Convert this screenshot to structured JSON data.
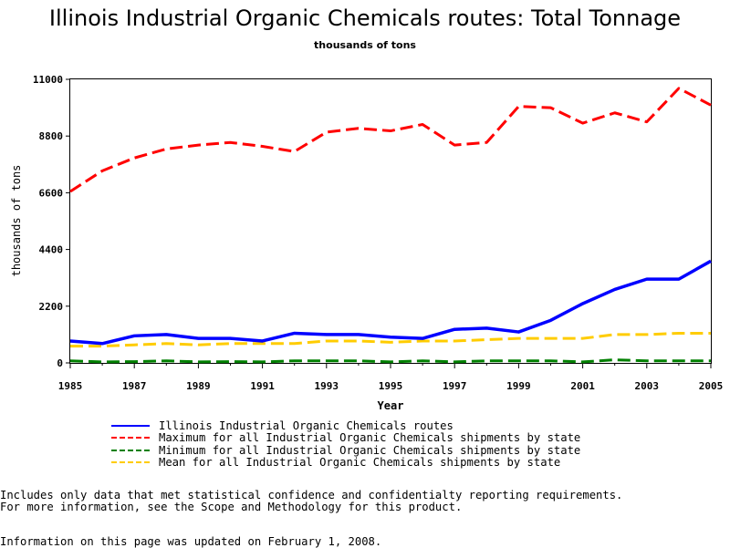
{
  "chart_data": {
    "type": "line",
    "title": "Illinois Industrial Organic Chemicals routes: Total Tonnage",
    "subtitle": "thousands of tons",
    "xlabel": "Year",
    "ylabel": "thousands of tons",
    "xlim": [
      1985,
      2005
    ],
    "ylim": [
      0,
      11000
    ],
    "x_ticks": [
      1985,
      1987,
      1989,
      1991,
      1993,
      1995,
      1997,
      1999,
      2001,
      2003,
      2005
    ],
    "y_ticks": [
      0,
      2200,
      4400,
      6600,
      8800,
      11000
    ],
    "grid": false,
    "legend_position": "bottom",
    "x": [
      1985,
      1986,
      1987,
      1988,
      1989,
      1990,
      1991,
      1992,
      1993,
      1994,
      1995,
      1996,
      1997,
      1998,
      1999,
      2000,
      2001,
      2002,
      2003,
      2004,
      2005
    ],
    "series": [
      {
        "name": "Illinois Industrial Organic Chemicals routes",
        "color": "#0000ff",
        "style": "solid",
        "values": [
          850,
          750,
          1050,
          1100,
          950,
          950,
          850,
          1150,
          1100,
          1100,
          1000,
          950,
          1300,
          1350,
          1200,
          1650,
          2300,
          2850,
          3250,
          3250,
          3950
        ]
      },
      {
        "name": "Maximum for all Industrial Organic Chemicals shipments by state",
        "color": "#ff0000",
        "style": "dashed",
        "values": [
          6650,
          7450,
          7950,
          8300,
          8450,
          8550,
          8400,
          8200,
          8950,
          9100,
          9000,
          9250,
          8450,
          8550,
          9950,
          9900,
          9300,
          9700,
          9350,
          10650,
          10000
        ]
      },
      {
        "name": "Minimum for all Industrial Organic Chemicals shipments by state",
        "color": "#008000",
        "style": "dashed",
        "values": [
          80,
          40,
          50,
          80,
          40,
          50,
          40,
          80,
          80,
          80,
          40,
          80,
          40,
          80,
          80,
          80,
          40,
          120,
          80,
          80,
          80
        ]
      },
      {
        "name": "Mean for all Industrial Organic Chemicals shipments by state",
        "color": "#ffcc00",
        "style": "dashed",
        "values": [
          650,
          650,
          700,
          750,
          700,
          750,
          750,
          750,
          850,
          850,
          800,
          850,
          850,
          900,
          950,
          950,
          950,
          1100,
          1100,
          1150,
          1150
        ]
      }
    ]
  },
  "notes": {
    "line1": "Includes only data that met statistical confidence and confidentialty reporting requirements.",
    "line2": "For more information, see the Scope and Methodology for this product.",
    "updated": "Information on this page was updated on February 1, 2008."
  }
}
